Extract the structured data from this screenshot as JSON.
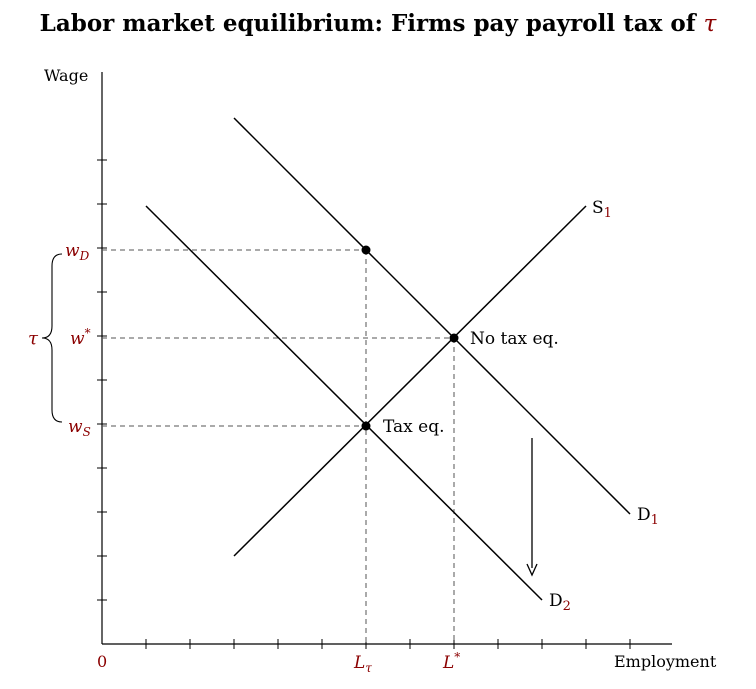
{
  "title": {
    "text": "Labor market equilibrium: Firms pay payroll tax of",
    "symbol": "τ"
  },
  "axes": {
    "ylabel": "Wage",
    "xlabel": "Employment",
    "origin": "0",
    "x_ticks": {
      "L_tau": "L",
      "L_tau_sub": "τ",
      "L_star": "L",
      "L_star_sup": "*"
    },
    "y_ticks": {
      "w_D": "w",
      "w_D_sub": "D",
      "w_star": "w",
      "w_star_sup": "*",
      "w_S": "w",
      "w_S_sub": "S"
    },
    "brace_label": "τ"
  },
  "curves": {
    "S1": {
      "name": "S",
      "sub": "1"
    },
    "D1": {
      "name": "D",
      "sub": "1"
    },
    "D2": {
      "name": "D",
      "sub": "2"
    }
  },
  "points": {
    "no_tax": "No tax eq.",
    "tax": "Tax eq."
  },
  "colors": {
    "accent": "#8b0000",
    "line": "#000000",
    "guide": "#555555"
  }
}
